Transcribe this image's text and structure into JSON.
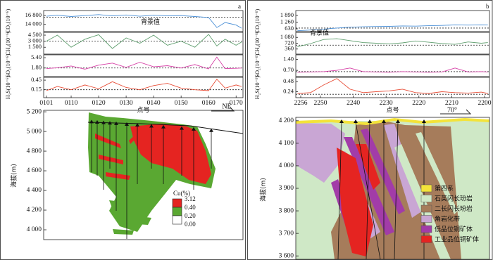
{
  "chart_data": [
    {
      "type": "line",
      "ylabel": "CO₂(10⁻⁶)",
      "annotation": "背景值",
      "color": "#4a8fd6",
      "x": [
        101,
        105,
        110,
        115,
        120,
        125,
        130,
        135,
        140,
        145,
        150,
        155,
        160,
        163,
        166,
        170,
        172
      ],
      "values": [
        16600,
        16900,
        16500,
        16800,
        17100,
        16700,
        17000,
        16600,
        16900,
        16700,
        16800,
        16500,
        16200,
        13000,
        14600,
        13800,
        12800
      ],
      "background": 16300,
      "xlim": [
        100,
        172.5
      ],
      "ylim": [
        11700,
        18400
      ],
      "yticks": [
        {
          "value": 16800,
          "label": "16 800"
        },
        {
          "value": 14000,
          "label": "14 000"
        }
      ]
    },
    {
      "type": "line",
      "ylabel": "CH₄(10⁻⁶)",
      "color": "#5f9e6e",
      "x": [
        101,
        105,
        110,
        115,
        120,
        125,
        130,
        135,
        140,
        145,
        150,
        155,
        160,
        163,
        166,
        170,
        172
      ],
      "values": [
        3000,
        4500,
        1500,
        3500,
        4600,
        1200,
        3800,
        2500,
        4500,
        2000,
        3000,
        1500,
        4700,
        1800,
        3500,
        2000,
        2800
      ],
      "background": 3000,
      "xlim": [
        100,
        172.5
      ],
      "ylim": [
        -200,
        5200
      ],
      "yticks": [
        {
          "value": 4500,
          "label": "4 500"
        },
        {
          "value": 3000,
          "label": "3 000"
        },
        {
          "value": 1500,
          "label": "1 500"
        }
      ]
    },
    {
      "type": "line",
      "ylabel": "SO₂(10⁻⁶)",
      "color": "#d63fa6",
      "x": [
        101,
        105,
        110,
        115,
        120,
        125,
        130,
        135,
        140,
        145,
        150,
        155,
        160,
        163,
        166,
        170,
        172
      ],
      "values": [
        1.6,
        1.9,
        2.5,
        1.4,
        2.8,
        3.5,
        2.0,
        3.8,
        2.2,
        2.6,
        1.8,
        3.0,
        1.5,
        5.6,
        1.6,
        1.7,
        1.8
      ],
      "background": 1.8,
      "xlim": [
        100,
        172.5
      ],
      "ylim": [
        -1.2,
        6.4
      ],
      "yticks": [
        {
          "value": 5.4,
          "label": "5.40"
        },
        {
          "value": 1.8,
          "label": "1.80"
        }
      ]
    },
    {
      "type": "line",
      "ylabel": "H₂S(10⁻⁶)",
      "color": "#e8503a",
      "x": [
        101,
        105,
        110,
        115,
        120,
        125,
        130,
        135,
        140,
        145,
        150,
        155,
        160,
        163,
        166,
        170,
        172
      ],
      "values": [
        0.12,
        0.25,
        0.15,
        0.3,
        0.18,
        0.4,
        0.22,
        0.15,
        0.28,
        0.35,
        0.2,
        0.15,
        0.12,
        0.48,
        0.2,
        0.3,
        0.25
      ],
      "background": 0.15,
      "xlim": [
        100,
        172.5
      ],
      "ylim": [
        -0.1,
        0.54
      ],
      "yticks": [
        0.45,
        {
          "value": 0.15,
          "label": "0.15"
        }
      ],
      "xticks": [
        {
          "value": 101,
          "label": "0101"
        },
        {
          "value": 110,
          "label": "0110"
        },
        {
          "value": 120,
          "label": "0120"
        },
        {
          "value": 130,
          "label": "0130"
        },
        {
          "value": 140,
          "label": "0140"
        },
        {
          "value": 150,
          "label": "0150"
        },
        {
          "value": 160,
          "label": "0160"
        },
        {
          "value": 170,
          "label": "0170"
        }
      ],
      "xlabel": "点号",
      "direction": "NE"
    },
    {
      "type": "line",
      "ylabel": "CO₂(10⁻⁶)",
      "annotation": "背景值",
      "color": "#4a8fd6",
      "x": [
        2257,
        2253,
        2249,
        2245,
        2241,
        2237,
        2233,
        2229,
        2225,
        2221,
        2217,
        2213,
        2209,
        2205,
        2201,
        2199
      ],
      "values": [
        450,
        520,
        600,
        700,
        780,
        820,
        850,
        860,
        900,
        880,
        920,
        950,
        1000,
        980,
        1000,
        990
      ],
      "background": 700,
      "xlim": [
        2257.5,
        2198.5
      ],
      "ylim": [
        365,
        2350
      ],
      "yticks": [
        {
          "value": 1890,
          "label": "1 890"
        },
        {
          "value": 1260,
          "label": "1 260"
        },
        630
      ]
    },
    {
      "type": "line",
      "ylabel": "CH₄(10⁻⁶)",
      "color": "#5f9e6e",
      "x": [
        2257,
        2253,
        2249,
        2245,
        2241,
        2237,
        2233,
        2229,
        2225,
        2221,
        2217,
        2213,
        2209,
        2205,
        2201,
        2199
      ],
      "values": [
        500,
        700,
        950,
        1000,
        880,
        760,
        720,
        680,
        740,
        860,
        780,
        700,
        650,
        800,
        720,
        760
      ],
      "background": 600,
      "xlim": [
        2257.5,
        2198.5
      ],
      "ylim": [
        45,
        1395
      ],
      "yticks": [
        {
          "value": 1080,
          "label": "1 080"
        },
        720,
        360
      ]
    },
    {
      "type": "line",
      "ylabel": "SO₂(10⁻⁶)",
      "color": "#d63fa6",
      "x": [
        2257,
        2253,
        2249,
        2245,
        2241,
        2237,
        2233,
        2229,
        2225,
        2221,
        2217,
        2213,
        2209,
        2205,
        2201,
        2199
      ],
      "values": [
        0.58,
        0.6,
        0.62,
        0.7,
        0.85,
        0.62,
        0.6,
        0.58,
        0.62,
        0.6,
        0.58,
        0.6,
        0.85,
        0.6,
        0.62,
        0.6
      ],
      "background": 0.62,
      "xlim": [
        2257.5,
        2198.5
      ],
      "ylim": [
        0.3,
        1.7
      ],
      "yticks": [
        {
          "value": 1.4,
          "label": "1.40"
        },
        {
          "value": 0.7,
          "label": "0.70"
        }
      ]
    },
    {
      "type": "line",
      "ylabel": "H₂S(10⁻⁶)",
      "color": "#e8503a",
      "x": [
        2257,
        2253,
        2249,
        2245,
        2241,
        2237,
        2233,
        2229,
        2225,
        2221,
        2217,
        2213,
        2209,
        2205,
        2201,
        2199
      ],
      "values": [
        0.2,
        0.22,
        0.4,
        0.55,
        0.3,
        0.22,
        0.24,
        0.26,
        0.3,
        0.22,
        0.2,
        0.24,
        0.22,
        0.21,
        0.23,
        0.2
      ],
      "background": 0.18,
      "xlim": [
        2257.5,
        2198.5
      ],
      "ylim": [
        0.1,
        0.58
      ],
      "yticks": [
        0.48,
        0.24
      ],
      "xticks": [
        2256,
        2250,
        2240,
        2230,
        2220,
        2210,
        2200
      ],
      "xlabel": "点号",
      "direction": "70°"
    }
  ],
  "sections": [
    {
      "panel": "a",
      "ylabel": "海拔(m)",
      "ylim": [
        3900,
        5215
      ],
      "yticks": [
        {
          "value": 5200,
          "label": "5 200"
        },
        {
          "value": 5000,
          "label": "5 000"
        },
        {
          "value": 4800,
          "label": "4 800"
        },
        {
          "value": 4600,
          "label": "4 600"
        },
        {
          "value": 4400,
          "label": "4 400"
        },
        {
          "value": 4200,
          "label": "4 200"
        },
        {
          "value": 4000,
          "label": "4 000"
        }
      ],
      "legend_title": "Cu(%)",
      "classes": [
        3.12,
        {
          "value": 0.4,
          "label": "0.40"
        },
        {
          "value": 0.2,
          "label": "0.20"
        },
        {
          "value": 0,
          "label": "0.00"
        }
      ],
      "colors": [
        "#e52421",
        "#5aa832",
        "#ffffff"
      ]
    },
    {
      "panel": "b",
      "ylabel": "海拔(m)",
      "ylim": [
        3585,
        4215
      ],
      "yticks": [
        {
          "value": 4200,
          "label": "4 200"
        },
        {
          "value": 4100,
          "label": "4 100"
        },
        {
          "value": 4000,
          "label": "4 000"
        },
        {
          "value": 3900,
          "label": "3 900"
        },
        {
          "value": 3800,
          "label": "3 800"
        },
        {
          "value": 3700,
          "label": "3 700"
        },
        {
          "value": 3600,
          "label": "3 600"
        }
      ],
      "legend": [
        {
          "label": "第四系",
          "color": "#f3e33a"
        },
        {
          "label": "石英闪长玢岩",
          "color": "#cfe8c6"
        },
        {
          "label": "二长闪长玢岩",
          "color": "#a67c5b"
        },
        {
          "label": "角岩化带",
          "color": "#c9a6d4"
        },
        {
          "label": "低品位铜矿体",
          "color": "#a23ca8"
        },
        {
          "label": "工业品位铜矿体",
          "color": "#e52421"
        }
      ]
    }
  ]
}
